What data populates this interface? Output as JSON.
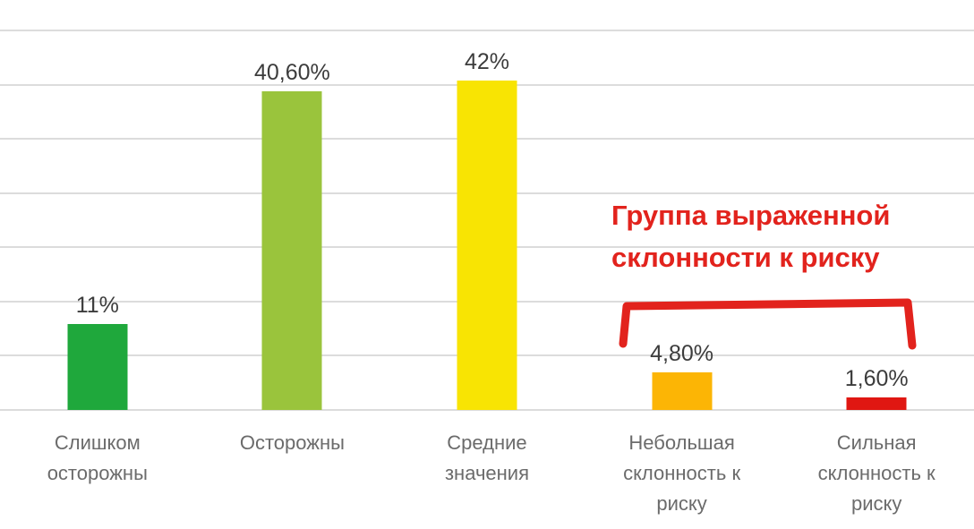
{
  "chart_data": {
    "type": "bar",
    "categories": [
      "Слишком\nосторожны",
      "Осторожны",
      "Средние\nзначения",
      "Небольшая\nсклонность к\nриску",
      "Сильная\nсклонность к\nриску"
    ],
    "values": [
      11,
      40.6,
      42,
      4.8,
      1.6
    ],
    "value_labels": [
      "11%",
      "40,60%",
      "42%",
      "4,80%",
      "1,60%"
    ],
    "bar_colors": [
      "#1fa83c",
      "#9ac43c",
      "#f8e403",
      "#fcb505",
      "#e01712"
    ],
    "title": "",
    "xlabel": "",
    "ylabel": "",
    "ylim": [
      0,
      48.4
    ],
    "grid": "horizontal",
    "gridline_count": 8,
    "gridline_color": "#dcdcdc",
    "legend": "none",
    "label_color": "#3c3c3c",
    "category_label_color": "#6b6b6b",
    "annotation": {
      "text": "Группа выраженной\nсклонности к риску",
      "color": "#e2231d",
      "bracket_over": [
        "Небольшая склонность к риску",
        "Сильная склонность к риску"
      ]
    }
  }
}
